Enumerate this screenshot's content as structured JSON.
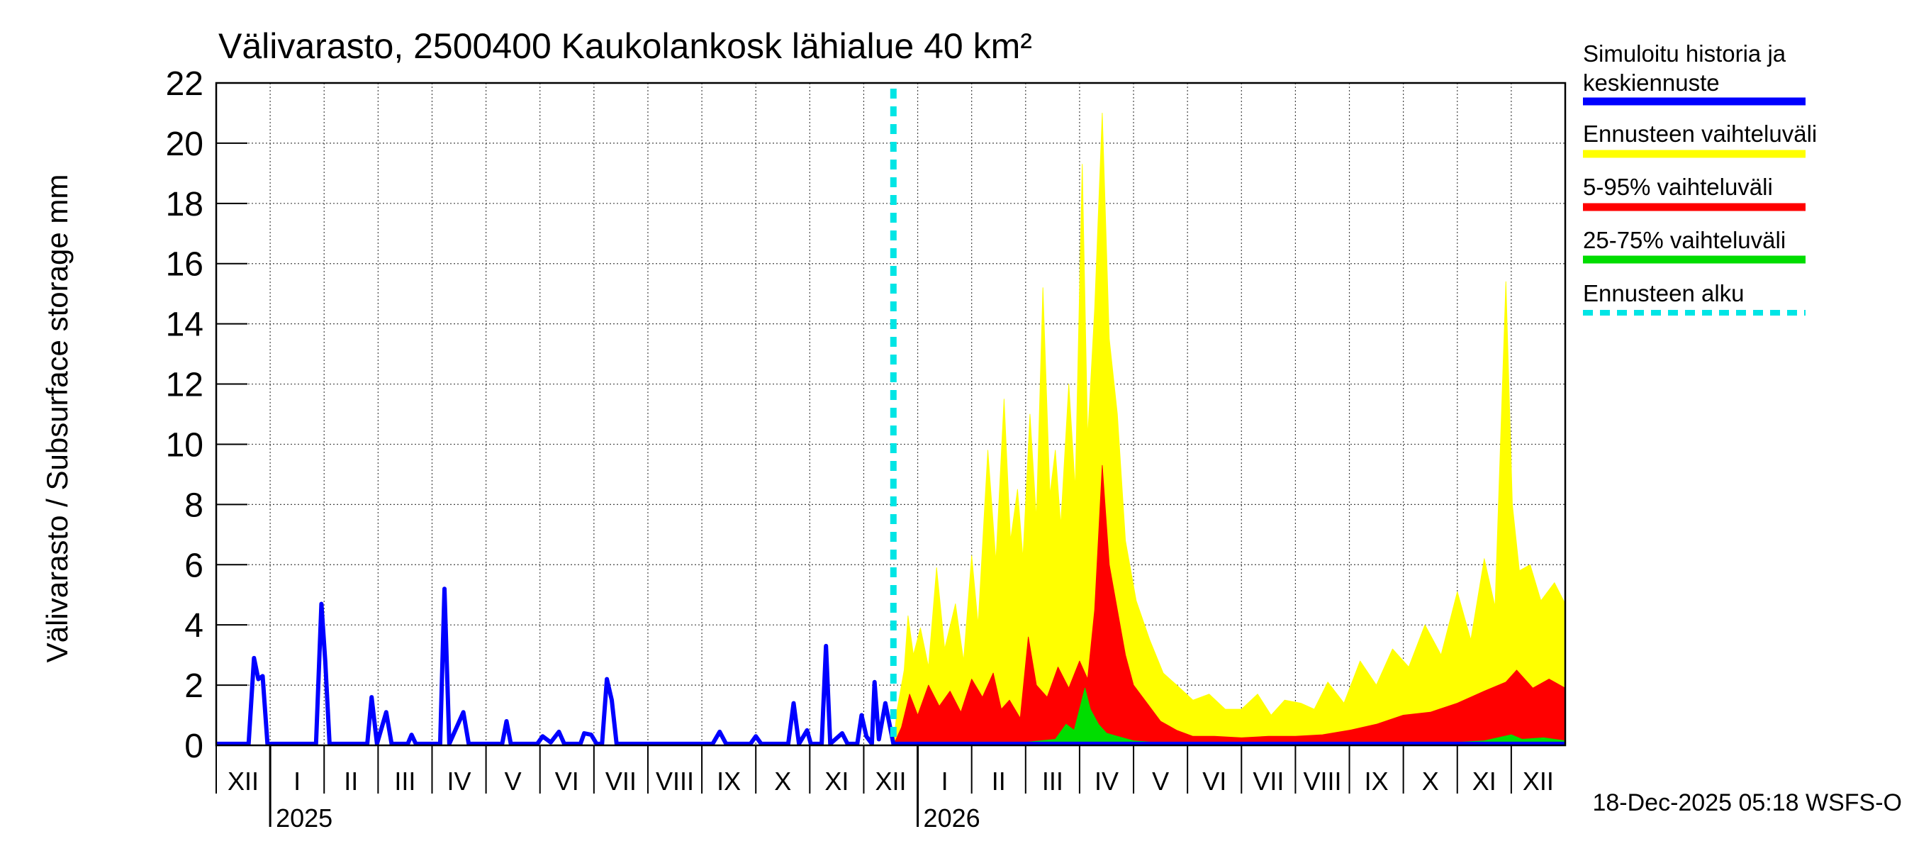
{
  "chart_data": {
    "type": "area",
    "title": "Välivarasto, 2500400 Kaukolankosk lähialue 40 km²",
    "ylabel": "Välivarasto / Subsurface storage  mm",
    "xlabel": "",
    "ylim": [
      0,
      22
    ],
    "yticks": [
      0,
      2,
      4,
      6,
      8,
      10,
      12,
      14,
      16,
      18,
      20,
      22
    ],
    "grid": true,
    "x_unit": "month index from start of Dec 2024",
    "xlim": [
      0,
      25
    ],
    "forecast_start": 12.55,
    "months": [
      {
        "label": "XII",
        "start": 0,
        "end": 1
      },
      {
        "label": "I",
        "start": 1,
        "end": 2
      },
      {
        "label": "II",
        "start": 2,
        "end": 3
      },
      {
        "label": "III",
        "start": 3,
        "end": 4
      },
      {
        "label": "IV",
        "start": 4,
        "end": 5
      },
      {
        "label": "V",
        "start": 5,
        "end": 6
      },
      {
        "label": "VI",
        "start": 6,
        "end": 7
      },
      {
        "label": "VII",
        "start": 7,
        "end": 8
      },
      {
        "label": "VIII",
        "start": 8,
        "end": 9
      },
      {
        "label": "IX",
        "start": 9,
        "end": 10
      },
      {
        "label": "X",
        "start": 10,
        "end": 11
      },
      {
        "label": "XI",
        "start": 11,
        "end": 12
      },
      {
        "label": "XII",
        "start": 12,
        "end": 13
      },
      {
        "label": "I",
        "start": 13,
        "end": 14
      },
      {
        "label": "II",
        "start": 14,
        "end": 15
      },
      {
        "label": "III",
        "start": 15,
        "end": 16
      },
      {
        "label": "IV",
        "start": 16,
        "end": 17
      },
      {
        "label": "V",
        "start": 17,
        "end": 18
      },
      {
        "label": "VI",
        "start": 18,
        "end": 19
      },
      {
        "label": "VII",
        "start": 19,
        "end": 20
      },
      {
        "label": "VIII",
        "start": 20,
        "end": 21
      },
      {
        "label": "IX",
        "start": 21,
        "end": 22
      },
      {
        "label": "X",
        "start": 22,
        "end": 23
      },
      {
        "label": "XI",
        "start": 23,
        "end": 24
      },
      {
        "label": "XII",
        "start": 24,
        "end": 25
      }
    ],
    "years": [
      {
        "label": "2025",
        "start": 1
      },
      {
        "label": "2026",
        "start": 13
      }
    ],
    "legend": [
      {
        "label": "Simuloitu historia ja keskiennuste",
        "color": "#0000ff",
        "style": "solid"
      },
      {
        "label": "Ennusteen vaihteluväli",
        "color": "#ffff00",
        "style": "solid"
      },
      {
        "label": "5-95% vaihteluväli",
        "color": "#ff0000",
        "style": "solid"
      },
      {
        "label": "25-75% vaihteluväli",
        "color": "#00dd00",
        "style": "solid"
      },
      {
        "label": "Ennusteen alku",
        "color": "#00e5e5",
        "style": "dashed"
      }
    ],
    "series": [
      {
        "name": "Simuloitu historia ja keskiennuste",
        "color": "#0000ff",
        "points": [
          [
            0.0,
            0.05
          ],
          [
            0.6,
            0.05
          ],
          [
            0.7,
            2.9
          ],
          [
            0.78,
            2.2
          ],
          [
            0.86,
            2.3
          ],
          [
            0.95,
            0.05
          ],
          [
            1.85,
            0.05
          ],
          [
            1.95,
            4.7
          ],
          [
            2.02,
            2.8
          ],
          [
            2.1,
            0.05
          ],
          [
            2.8,
            0.05
          ],
          [
            2.88,
            1.6
          ],
          [
            2.98,
            0.05
          ],
          [
            3.15,
            1.1
          ],
          [
            3.25,
            0.05
          ],
          [
            3.55,
            0.05
          ],
          [
            3.62,
            0.35
          ],
          [
            3.7,
            0.05
          ],
          [
            4.15,
            0.05
          ],
          [
            4.23,
            5.2
          ],
          [
            4.32,
            0.05
          ],
          [
            4.58,
            1.1
          ],
          [
            4.68,
            0.05
          ],
          [
            5.3,
            0.05
          ],
          [
            5.38,
            0.8
          ],
          [
            5.46,
            0.05
          ],
          [
            5.95,
            0.05
          ],
          [
            6.05,
            0.3
          ],
          [
            6.2,
            0.1
          ],
          [
            6.35,
            0.45
          ],
          [
            6.45,
            0.05
          ],
          [
            6.75,
            0.05
          ],
          [
            6.82,
            0.4
          ],
          [
            6.95,
            0.35
          ],
          [
            7.05,
            0.05
          ],
          [
            7.15,
            0.05
          ],
          [
            7.24,
            2.2
          ],
          [
            7.33,
            1.5
          ],
          [
            7.42,
            0.05
          ],
          [
            8.0,
            0.05
          ],
          [
            9.2,
            0.05
          ],
          [
            9.33,
            0.45
          ],
          [
            9.45,
            0.05
          ],
          [
            9.9,
            0.05
          ],
          [
            10.0,
            0.3
          ],
          [
            10.1,
            0.05
          ],
          [
            10.6,
            0.05
          ],
          [
            10.7,
            1.4
          ],
          [
            10.8,
            0.05
          ],
          [
            10.95,
            0.5
          ],
          [
            11.02,
            0.05
          ],
          [
            11.22,
            0.05
          ],
          [
            11.3,
            3.3
          ],
          [
            11.38,
            0.05
          ],
          [
            11.6,
            0.4
          ],
          [
            11.7,
            0.05
          ],
          [
            11.88,
            0.05
          ],
          [
            11.96,
            1.0
          ],
          [
            12.05,
            0.3
          ],
          [
            12.15,
            0.05
          ],
          [
            12.2,
            2.1
          ],
          [
            12.28,
            0.2
          ],
          [
            12.4,
            1.4
          ],
          [
            12.55,
            0.05
          ],
          [
            25.0,
            0.05
          ]
        ]
      },
      {
        "name": "Ennusteen vaihteluväli",
        "color": "#ffff00",
        "points": [
          [
            12.55,
            0.0
          ],
          [
            12.62,
            1.2
          ],
          [
            12.75,
            2.5
          ],
          [
            12.82,
            4.3
          ],
          [
            12.92,
            3.0
          ],
          [
            13.05,
            3.9
          ],
          [
            13.2,
            2.6
          ],
          [
            13.35,
            5.9
          ],
          [
            13.5,
            3.2
          ],
          [
            13.7,
            4.7
          ],
          [
            13.85,
            2.8
          ],
          [
            14.0,
            6.3
          ],
          [
            14.12,
            4.0
          ],
          [
            14.3,
            9.8
          ],
          [
            14.45,
            6.1
          ],
          [
            14.6,
            11.5
          ],
          [
            14.72,
            6.8
          ],
          [
            14.85,
            8.5
          ],
          [
            14.95,
            6.2
          ],
          [
            15.08,
            11.0
          ],
          [
            15.2,
            7.5
          ],
          [
            15.32,
            15.2
          ],
          [
            15.45,
            8.3
          ],
          [
            15.55,
            9.8
          ],
          [
            15.65,
            7.3
          ],
          [
            15.8,
            12.0
          ],
          [
            15.92,
            8.5
          ],
          [
            16.05,
            19.3
          ],
          [
            16.15,
            10.2
          ],
          [
            16.28,
            14.5
          ],
          [
            16.42,
            21.0
          ],
          [
            16.55,
            13.5
          ],
          [
            16.7,
            11.0
          ],
          [
            16.85,
            6.8
          ],
          [
            17.05,
            4.8
          ],
          [
            17.3,
            3.5
          ],
          [
            17.55,
            2.4
          ],
          [
            17.8,
            2.0
          ],
          [
            18.1,
            1.5
          ],
          [
            18.4,
            1.7
          ],
          [
            18.7,
            1.2
          ],
          [
            19.0,
            1.2
          ],
          [
            19.3,
            1.7
          ],
          [
            19.55,
            1.0
          ],
          [
            19.8,
            1.5
          ],
          [
            20.1,
            1.4
          ],
          [
            20.35,
            1.2
          ],
          [
            20.6,
            2.1
          ],
          [
            20.9,
            1.4
          ],
          [
            21.2,
            2.8
          ],
          [
            21.5,
            2.0
          ],
          [
            21.8,
            3.2
          ],
          [
            22.1,
            2.6
          ],
          [
            22.4,
            4.0
          ],
          [
            22.7,
            3.0
          ],
          [
            23.0,
            5.1
          ],
          [
            23.25,
            3.5
          ],
          [
            23.5,
            6.2
          ],
          [
            23.7,
            4.6
          ],
          [
            23.9,
            15.4
          ],
          [
            24.02,
            8.0
          ],
          [
            24.15,
            5.8
          ],
          [
            24.35,
            6.0
          ],
          [
            24.55,
            4.8
          ],
          [
            24.8,
            5.4
          ],
          [
            25.0,
            4.7
          ],
          [
            25.0,
            0.0
          ]
        ]
      },
      {
        "name": "5-95% vaihteluväli",
        "color": "#ff0000",
        "points": [
          [
            12.55,
            0.0
          ],
          [
            12.7,
            0.6
          ],
          [
            12.85,
            1.7
          ],
          [
            13.0,
            1.0
          ],
          [
            13.2,
            2.0
          ],
          [
            13.4,
            1.3
          ],
          [
            13.6,
            1.8
          ],
          [
            13.8,
            1.1
          ],
          [
            14.0,
            2.2
          ],
          [
            14.2,
            1.6
          ],
          [
            14.4,
            2.4
          ],
          [
            14.55,
            1.2
          ],
          [
            14.7,
            1.5
          ],
          [
            14.9,
            0.9
          ],
          [
            15.05,
            3.6
          ],
          [
            15.2,
            2.0
          ],
          [
            15.4,
            1.6
          ],
          [
            15.6,
            2.6
          ],
          [
            15.8,
            1.9
          ],
          [
            16.0,
            2.8
          ],
          [
            16.15,
            2.2
          ],
          [
            16.28,
            4.5
          ],
          [
            16.42,
            9.3
          ],
          [
            16.55,
            6.0
          ],
          [
            16.7,
            4.5
          ],
          [
            16.85,
            3.0
          ],
          [
            17.0,
            2.0
          ],
          [
            17.25,
            1.4
          ],
          [
            17.5,
            0.8
          ],
          [
            17.8,
            0.5
          ],
          [
            18.1,
            0.3
          ],
          [
            18.5,
            0.3
          ],
          [
            19.0,
            0.25
          ],
          [
            19.5,
            0.3
          ],
          [
            20.0,
            0.3
          ],
          [
            20.5,
            0.35
          ],
          [
            21.0,
            0.5
          ],
          [
            21.5,
            0.7
          ],
          [
            22.0,
            1.0
          ],
          [
            22.5,
            1.1
          ],
          [
            23.0,
            1.4
          ],
          [
            23.5,
            1.8
          ],
          [
            23.9,
            2.1
          ],
          [
            24.1,
            2.5
          ],
          [
            24.4,
            1.9
          ],
          [
            24.7,
            2.2
          ],
          [
            25.0,
            1.9
          ],
          [
            25.0,
            0.0
          ]
        ]
      },
      {
        "name": "25-75% vaihteluväli",
        "color": "#00dd00",
        "points": [
          [
            12.55,
            0.0
          ],
          [
            13.0,
            0.05
          ],
          [
            14.0,
            0.1
          ],
          [
            15.0,
            0.1
          ],
          [
            15.55,
            0.2
          ],
          [
            15.75,
            0.7
          ],
          [
            15.9,
            0.5
          ],
          [
            16.0,
            1.2
          ],
          [
            16.1,
            1.9
          ],
          [
            16.2,
            1.2
          ],
          [
            16.35,
            0.7
          ],
          [
            16.5,
            0.4
          ],
          [
            16.7,
            0.3
          ],
          [
            17.0,
            0.15
          ],
          [
            17.5,
            0.08
          ],
          [
            18.0,
            0.05
          ],
          [
            19.0,
            0.04
          ],
          [
            20.0,
            0.04
          ],
          [
            21.0,
            0.05
          ],
          [
            22.0,
            0.08
          ],
          [
            23.0,
            0.1
          ],
          [
            23.5,
            0.15
          ],
          [
            24.0,
            0.35
          ],
          [
            24.2,
            0.2
          ],
          [
            24.6,
            0.25
          ],
          [
            25.0,
            0.15
          ],
          [
            25.0,
            0.0
          ]
        ]
      }
    ]
  },
  "footer": {
    "timestamp": "18-Dec-2025 05:18 WSFS-O"
  }
}
